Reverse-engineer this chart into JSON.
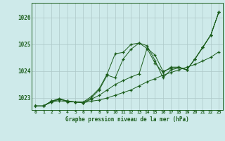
{
  "title": "Graphe pression niveau de la mer (hPa)",
  "bg_color": "#ceeaea",
  "grid_color": "#aec8c8",
  "line_color": "#1a5c1a",
  "xlim": [
    -0.5,
    23.5
  ],
  "ylim": [
    1022.55,
    1026.55
  ],
  "x_ticks": [
    0,
    1,
    2,
    3,
    4,
    5,
    6,
    7,
    8,
    9,
    10,
    11,
    12,
    13,
    14,
    15,
    16,
    17,
    18,
    19,
    20,
    21,
    22,
    23
  ],
  "y_ticks": [
    1023,
    1024,
    1025,
    1026
  ],
  "series": [
    [
      1022.7,
      1022.7,
      1022.85,
      1022.9,
      1022.85,
      1022.85,
      1022.82,
      1022.88,
      1022.92,
      1023.0,
      1023.1,
      1023.2,
      1023.3,
      1023.45,
      1023.6,
      1023.72,
      1023.85,
      1023.95,
      1024.05,
      1024.15,
      1024.25,
      1024.38,
      1024.52,
      1024.72
    ],
    [
      1022.7,
      1022.7,
      1022.85,
      1022.95,
      1022.88,
      1022.85,
      1022.82,
      1022.95,
      1023.1,
      1023.3,
      1023.5,
      1023.65,
      1023.78,
      1023.9,
      1024.85,
      1024.6,
      1024.0,
      1024.1,
      1024.15,
      1024.05,
      1024.45,
      1024.9,
      1025.35,
      1026.2
    ],
    [
      1022.7,
      1022.7,
      1022.88,
      1022.95,
      1022.88,
      1022.85,
      1022.85,
      1023.05,
      1023.35,
      1023.9,
      1024.65,
      1024.7,
      1025.0,
      1025.05,
      1024.85,
      1024.3,
      1023.95,
      1024.15,
      1024.15,
      1024.05,
      1024.45,
      1024.9,
      1025.35,
      1026.2
    ],
    [
      1022.7,
      1022.7,
      1022.88,
      1022.98,
      1022.88,
      1022.85,
      1022.82,
      1023.0,
      1023.3,
      1023.85,
      1023.75,
      1024.45,
      1024.82,
      1025.05,
      1024.95,
      1024.4,
      1023.75,
      1024.05,
      1024.12,
      1024.05,
      1024.45,
      1024.88,
      1025.35,
      1026.2
    ]
  ]
}
